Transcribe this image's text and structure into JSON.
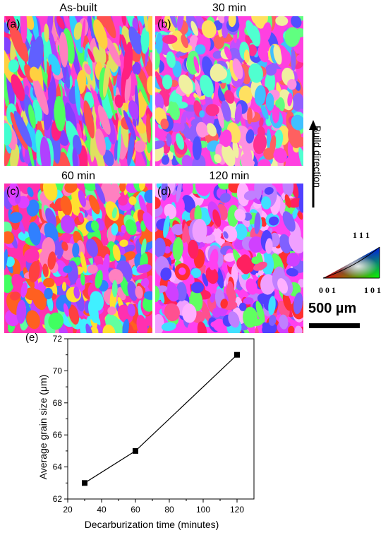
{
  "panels": [
    {
      "label": "(a)",
      "title": "As-built"
    },
    {
      "label": "(b)",
      "title": "30 min"
    },
    {
      "label": "(c)",
      "title": "60 min"
    },
    {
      "label": "(d)",
      "title": "120 min"
    }
  ],
  "build_direction": "Build direction",
  "ipf_key": {
    "top": "1 1 1",
    "left": "0 0 1",
    "right": "1 0 1"
  },
  "scale_bar": "500 µm",
  "chart_panel_label": "(e)",
  "chart_data": {
    "type": "line",
    "x": [
      30,
      60,
      120
    ],
    "y": [
      63,
      65,
      71
    ],
    "xlabel": "Decarburization time (minutes)",
    "ylabel": "Average grain size (μm)",
    "xlim": [
      20,
      130
    ],
    "ylim": [
      62,
      72
    ],
    "xticks": [
      20,
      40,
      60,
      80,
      100,
      120
    ],
    "yticks": [
      62,
      64,
      66,
      68,
      70,
      72
    ],
    "marker": "square",
    "color": "#000000"
  }
}
